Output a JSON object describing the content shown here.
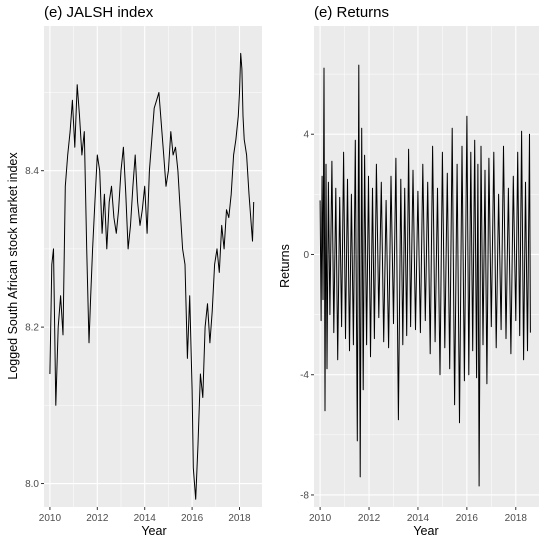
{
  "chart_data": [
    {
      "type": "line",
      "title": "(e) JALSH index",
      "xlabel": "Year",
      "ylabel": "Logged South African stock market index",
      "xlim": [
        2009.75,
        2018.95
      ],
      "ylim": [
        7.97,
        8.585
      ],
      "xticks": [
        2010,
        2012,
        2014,
        2016,
        2018
      ],
      "xtick_labels": [
        "2010",
        "2012",
        "2014",
        "2016",
        "2018"
      ],
      "yticks": [
        8.0,
        8.2,
        8.4
      ],
      "ytick_labels": [
        "8.0",
        "8.2",
        "8.4"
      ],
      "grid": true,
      "series": [
        {
          "x": [
            2010.0,
            2010.08,
            2010.15,
            2010.25,
            2010.35,
            2010.45,
            2010.55,
            2010.65,
            2010.75,
            2010.85,
            2010.95,
            2011.05,
            2011.15,
            2011.25,
            2011.35,
            2011.45,
            2011.55,
            2011.65,
            2011.72,
            2011.8,
            2011.9,
            2012.0,
            2012.1,
            2012.2,
            2012.3,
            2012.4,
            2012.5,
            2012.6,
            2012.7,
            2012.8,
            2012.9,
            2013.0,
            2013.1,
            2013.2,
            2013.3,
            2013.4,
            2013.5,
            2013.6,
            2013.7,
            2013.8,
            2013.9,
            2014.0,
            2014.1,
            2014.2,
            2014.3,
            2014.4,
            2014.5,
            2014.6,
            2014.7,
            2014.8,
            2014.9,
            2015.0,
            2015.1,
            2015.2,
            2015.3,
            2015.4,
            2015.5,
            2015.6,
            2015.7,
            2015.8,
            2015.9,
            2016.0,
            2016.05,
            2016.1,
            2016.15,
            2016.25,
            2016.35,
            2016.45,
            2016.55,
            2016.65,
            2016.75,
            2016.85,
            2016.95,
            2017.05,
            2017.15,
            2017.25,
            2017.35,
            2017.45,
            2017.55,
            2017.65,
            2017.75,
            2017.85,
            2017.95,
            2018.0,
            2018.05,
            2018.1,
            2018.15,
            2018.2,
            2018.3,
            2018.4,
            2018.5,
            2018.55,
            2018.6
          ],
          "y": [
            8.14,
            8.28,
            8.3,
            8.1,
            8.2,
            8.24,
            8.19,
            8.38,
            8.42,
            8.45,
            8.49,
            8.43,
            8.51,
            8.47,
            8.42,
            8.45,
            8.3,
            8.18,
            8.24,
            8.3,
            8.36,
            8.42,
            8.4,
            8.32,
            8.37,
            8.3,
            8.36,
            8.38,
            8.34,
            8.32,
            8.35,
            8.4,
            8.43,
            8.37,
            8.3,
            8.33,
            8.38,
            8.42,
            8.36,
            8.33,
            8.35,
            8.38,
            8.32,
            8.4,
            8.44,
            8.48,
            8.49,
            8.5,
            8.46,
            8.42,
            8.38,
            8.4,
            8.45,
            8.42,
            8.43,
            8.4,
            8.35,
            8.3,
            8.28,
            8.16,
            8.24,
            8.12,
            8.02,
            8.0,
            7.98,
            8.05,
            8.14,
            8.11,
            8.2,
            8.23,
            8.18,
            8.22,
            8.28,
            8.3,
            8.27,
            8.33,
            8.3,
            8.35,
            8.34,
            8.37,
            8.42,
            8.44,
            8.47,
            8.5,
            8.55,
            8.53,
            8.47,
            8.44,
            8.42,
            8.37,
            8.33,
            8.31,
            8.36
          ]
        }
      ]
    },
    {
      "type": "line",
      "title": "(e) Returns",
      "xlabel": "Year",
      "ylabel": "Returns",
      "xlim": [
        2009.75,
        2018.95
      ],
      "ylim": [
        -8.4,
        7.6
      ],
      "xticks": [
        2010,
        2012,
        2014,
        2016,
        2018
      ],
      "xtick_labels": [
        "2010",
        "2012",
        "2014",
        "2016",
        "2018"
      ],
      "yticks": [
        -8,
        -4,
        0,
        4
      ],
      "ytick_labels": [
        "-8",
        "-4",
        "0",
        "4"
      ],
      "grid": true,
      "series": [
        {
          "x": [
            2010.0,
            2010.04,
            2010.08,
            2010.12,
            2010.16,
            2010.2,
            2010.24,
            2010.28,
            2010.34,
            2010.4,
            2010.48,
            2010.56,
            2010.64,
            2010.72,
            2010.8,
            2010.88,
            2010.96,
            2011.04,
            2011.12,
            2011.2,
            2011.28,
            2011.36,
            2011.44,
            2011.52,
            2011.58,
            2011.64,
            2011.7,
            2011.76,
            2011.82,
            2011.9,
            2011.98,
            2012.06,
            2012.14,
            2012.22,
            2012.3,
            2012.4,
            2012.5,
            2012.6,
            2012.7,
            2012.8,
            2012.9,
            2013.0,
            2013.1,
            2013.2,
            2013.3,
            2013.38,
            2013.46,
            2013.54,
            2013.62,
            2013.7,
            2013.8,
            2013.9,
            2014.0,
            2014.1,
            2014.2,
            2014.3,
            2014.4,
            2014.5,
            2014.6,
            2014.7,
            2014.8,
            2014.9,
            2015.0,
            2015.1,
            2015.2,
            2015.3,
            2015.4,
            2015.5,
            2015.6,
            2015.7,
            2015.8,
            2015.9,
            2016.0,
            2016.08,
            2016.16,
            2016.24,
            2016.32,
            2016.4,
            2016.45,
            2016.5,
            2016.58,
            2016.66,
            2016.74,
            2016.82,
            2016.9,
            2017.0,
            2017.1,
            2017.2,
            2017.3,
            2017.4,
            2017.5,
            2017.6,
            2017.7,
            2017.8,
            2017.9,
            2018.0,
            2018.08,
            2018.16,
            2018.24,
            2018.32,
            2018.4,
            2018.48,
            2018.56,
            2018.6
          ],
          "y": [
            1.8,
            -2.2,
            2.6,
            -1.5,
            6.2,
            -5.2,
            3.0,
            -3.8,
            2.4,
            -2.0,
            3.1,
            -2.6,
            2.2,
            -3.5,
            1.9,
            -2.4,
            3.4,
            -2.8,
            2.5,
            -3.2,
            2.0,
            -3.0,
            3.8,
            -6.2,
            6.3,
            -7.4,
            4.2,
            -4.5,
            3.3,
            -3.0,
            2.6,
            -3.4,
            2.2,
            -2.8,
            3.0,
            -2.1,
            2.4,
            -2.9,
            1.8,
            -3.1,
            2.6,
            -2.3,
            3.2,
            -5.5,
            2.5,
            -3.0,
            2.2,
            -2.7,
            3.5,
            -2.4,
            2.8,
            -2.5,
            2.1,
            -2.6,
            3.0,
            -2.2,
            2.4,
            -3.3,
            3.6,
            -2.9,
            2.2,
            -4.0,
            3.4,
            -3.1,
            2.7,
            -3.8,
            4.2,
            -5.0,
            3.0,
            -5.6,
            3.6,
            -4.2,
            4.6,
            -4.0,
            3.4,
            -3.2,
            3.8,
            -4.1,
            3.0,
            -7.7,
            3.6,
            -3.0,
            2.8,
            -4.3,
            3.2,
            -2.4,
            3.4,
            -3.1,
            2.0,
            -2.5,
            3.6,
            -2.8,
            2.2,
            -3.3,
            2.6,
            -2.2,
            3.4,
            -2.7,
            4.1,
            -3.5,
            2.4,
            -3.2,
            4.0,
            -2.6
          ]
        }
      ]
    }
  ]
}
